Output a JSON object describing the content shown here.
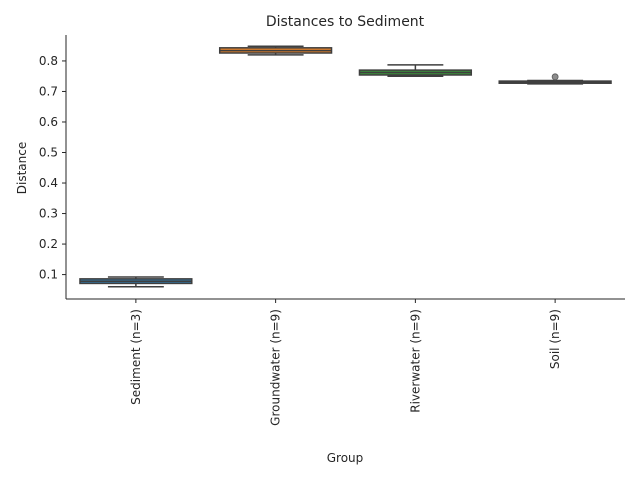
{
  "chart_data": {
    "type": "box",
    "title": "Distances to Sediment",
    "xlabel": "Group",
    "ylabel": "Distance",
    "ylim": [
      0.02,
      0.885
    ],
    "yticks": [
      0.1,
      0.2,
      0.3,
      0.4,
      0.5,
      0.6,
      0.7,
      0.8
    ],
    "ytick_labels": [
      "0.1",
      "0.2",
      "0.3",
      "0.4",
      "0.5",
      "0.6",
      "0.7",
      "0.8"
    ],
    "grid": false,
    "categories": [
      "Sediment (n=3)",
      "Groundwater (n=9)",
      "Riverwater (n=9)",
      "Soil (n=9)"
    ],
    "boxes": [
      {
        "whisker_low": 0.06,
        "q1": 0.071,
        "median": 0.078,
        "q3": 0.086,
        "whisker_high": 0.092,
        "outliers": [],
        "color": "#3274a1"
      },
      {
        "whisker_low": 0.82,
        "q1": 0.826,
        "median": 0.834,
        "q3": 0.843,
        "whisker_high": 0.848,
        "outliers": [],
        "color": "#e1812c"
      },
      {
        "whisker_low": 0.75,
        "q1": 0.754,
        "median": 0.762,
        "q3": 0.77,
        "whisker_high": 0.787,
        "outliers": [],
        "color": "#3a923a"
      },
      {
        "whisker_low": 0.725,
        "q1": 0.727,
        "median": 0.73,
        "q3": 0.734,
        "whisker_high": 0.736,
        "outliers": [
          0.748
        ],
        "color": "#c03d3e"
      }
    ]
  }
}
